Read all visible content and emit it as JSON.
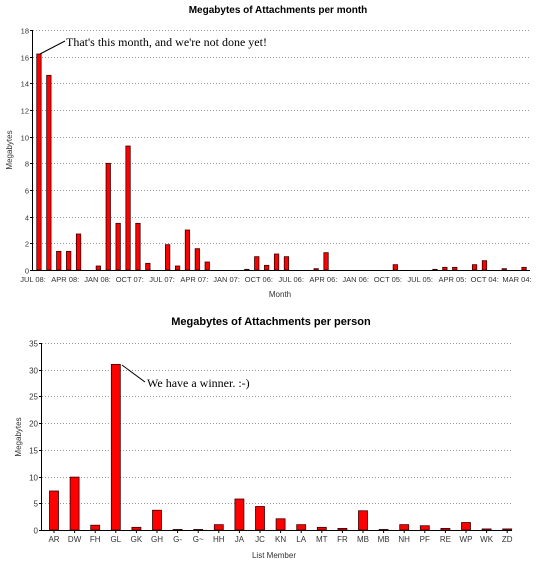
{
  "chart_data": [
    {
      "type": "bar",
      "title": "Megabytes of Attachments per month",
      "xlabel": "Month",
      "ylabel": "Megabytes",
      "ylim": [
        0,
        18
      ],
      "yticks": [
        0,
        2,
        4,
        6,
        8,
        10,
        12,
        14,
        16,
        18
      ],
      "grid": true,
      "bar_color": "#ff0000",
      "x_tick_labels": [
        "JUL 08:",
        "APR 08:",
        "JAN 08:",
        "OCT 07:",
        "JUL 07:",
        "APR 07:",
        "JAN 07:",
        "OCT 06:",
        "JUL 06:",
        "APR 06:",
        "JAN 06:",
        "OCT 05:",
        "JUL 05:",
        "APR 05:",
        "OCT 04:",
        "MAR 04:"
      ],
      "values": [
        16.2,
        14.6,
        1.4,
        1.4,
        2.7,
        0,
        0.3,
        8.0,
        3.5,
        9.3,
        3.5,
        0.5,
        0,
        1.9,
        0.3,
        3.0,
        1.6,
        0.6,
        0,
        0,
        0,
        0.05,
        1.0,
        0.35,
        1.2,
        1.0,
        0,
        0,
        0.1,
        1.3,
        0,
        0,
        0,
        0,
        0,
        0,
        0.4,
        0,
        0,
        0,
        0.05,
        0.2,
        0.2,
        0,
        0.4,
        0.7,
        0,
        0.1,
        0,
        0.2
      ],
      "annotation": "That's this month, and we're not done yet!"
    },
    {
      "type": "bar",
      "title": "Megabytes of Attachments per person",
      "xlabel": "List Member",
      "ylabel": "Megabytes",
      "ylim": [
        0,
        35
      ],
      "yticks": [
        0,
        5,
        10,
        15,
        20,
        25,
        30,
        35
      ],
      "grid": true,
      "bar_color": "#ff0000",
      "categories": [
        "AR",
        "DW",
        "FH",
        "GL",
        "GK",
        "GH",
        "G-",
        "G~",
        "HH",
        "JA",
        "JC",
        "KN",
        "LA",
        "MT",
        "FR",
        "MB",
        "MB",
        "NH",
        "PF",
        "RE",
        "WP",
        "WK",
        "ZD"
      ],
      "values": [
        7.3,
        9.9,
        0.9,
        31.0,
        0.5,
        3.7,
        0.1,
        0.1,
        1.0,
        5.8,
        4.4,
        2.1,
        1.0,
        0.5,
        0.3,
        3.6,
        0.1,
        1.0,
        0.8,
        0.3,
        1.4,
        0.2,
        0.2
      ],
      "annotation": "We have a winner. :-)"
    }
  ]
}
